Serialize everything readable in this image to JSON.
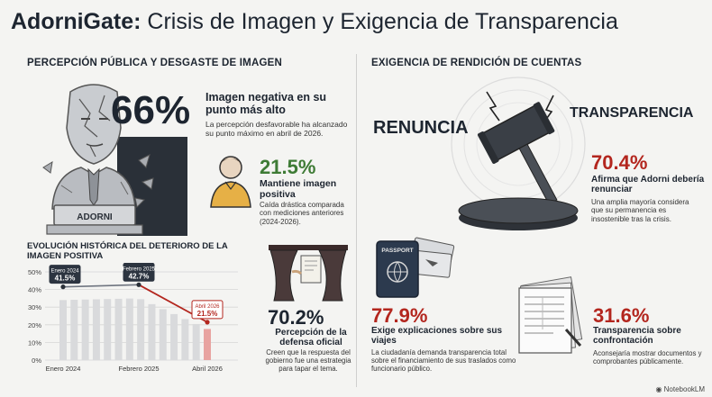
{
  "title": {
    "brand": "AdorniGate:",
    "rest": "Crisis de Imagen y Exigencia de Transparencia"
  },
  "left_section": "PERCEPCIÓN PÚBLICA Y DESGASTE DE IMAGEN",
  "right_section": "EXIGENCIA DE RENDICIÓN DE CUENTAS",
  "statue_label": "ADORNI",
  "stat_negative": {
    "value": "66%",
    "headline": "Imagen negativa en su punto más alto",
    "text": "La percepción desfavorable ha alcanzado su punto máximo en abril de 2026."
  },
  "stat_positive": {
    "value": "21.5%",
    "headline": "Mantiene imagen positiva",
    "text": "Caída drástica comparada con mediciones anteriores (2024-2026)."
  },
  "stat_official": {
    "value": "70.2%",
    "headline": "Percepción de la defensa oficial",
    "text": "Creen que la respuesta del gobierno fue una estrategia para tapar el tema."
  },
  "chart_title": "EVOLUCIÓN HISTÓRICA DEL DETERIORO DE LA IMAGEN POSITIVA",
  "chart_data": {
    "type": "line",
    "title": "EVOLUCIÓN HISTÓRICA DEL DETERIORO DE LA IMAGEN POSITIVA",
    "x": [
      "Enero 2024",
      "Febrero 2025",
      "Abril 2026"
    ],
    "values": [
      41.5,
      42.7,
      21.5
    ],
    "point_labels": [
      "Enero 2024\n41.5%",
      "Febrero 2025\n42.7%",
      "Abril 2026\n21.5%"
    ],
    "yticks": [
      "50%",
      "40%",
      "30%",
      "20%",
      "10%",
      "0%"
    ],
    "ylim": [
      0,
      50
    ],
    "grid": true
  },
  "gavel_words": {
    "left": "RENUNCIA",
    "right": "TRANSPARENCIA"
  },
  "stat_resign": {
    "value": "70.4%",
    "headline": "Afirma que Adorni debería renunciar",
    "text": "Una amplia mayoría considera que su permanencia es insostenible tras la crisis."
  },
  "stat_explain": {
    "value": "77.9%",
    "headline": "Exige explicaciones sobre sus viajes",
    "text": "La ciudadanía demanda transparencia total sobre el financiamiento de sus traslados como funcionario público."
  },
  "stat_confront": {
    "value": "31.6%",
    "headline": "Transparencia sobre confrontación",
    "text": "Aconsejaría mostrar documentos y comprobantes públicamente."
  },
  "passport_label": "PASSPORT",
  "footer": "NotebookLM",
  "colors": {
    "accent_red": "#b3261e",
    "accent_green": "#3e7b35",
    "dark": "#1d2530",
    "chart_line": "#8a8f98"
  }
}
